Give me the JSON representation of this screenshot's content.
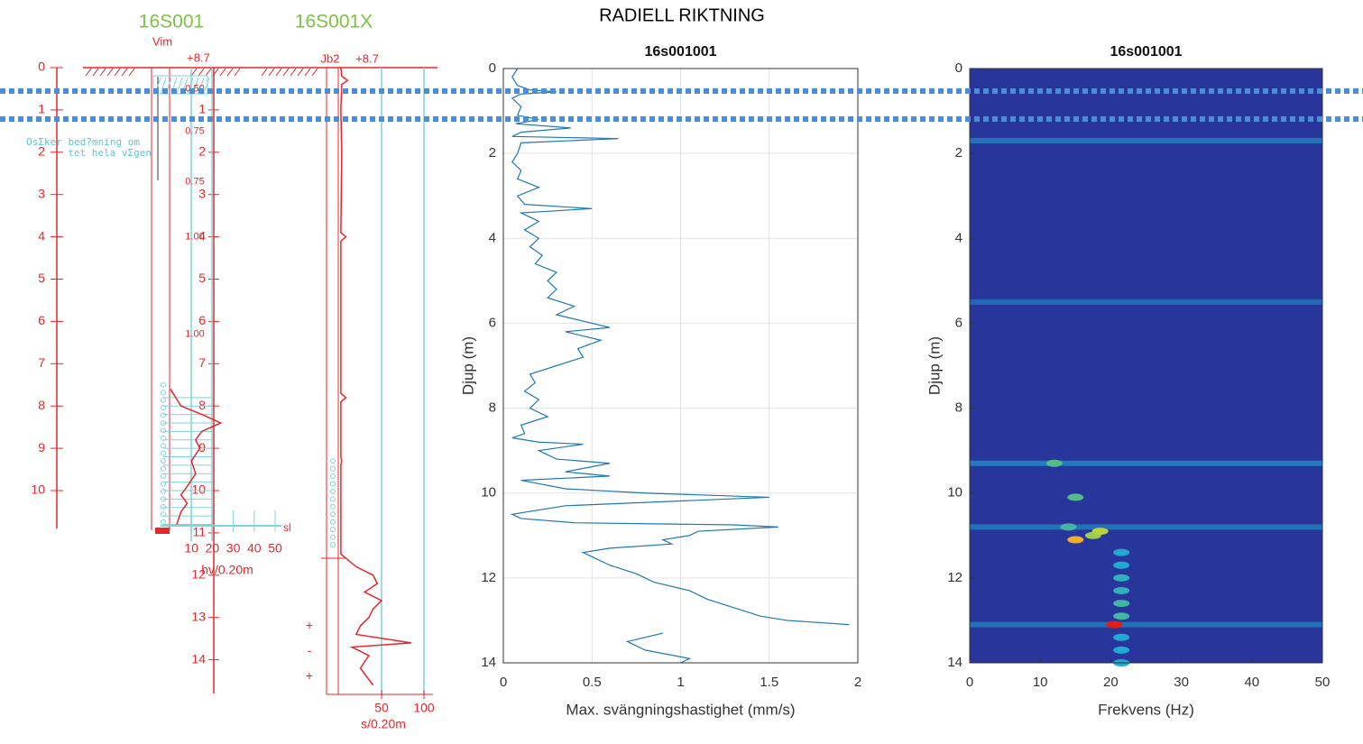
{
  "title": "RADIELL RIKTNING",
  "depth_markers": [
    0.53,
    1.19
  ],
  "chart_data": [
    {
      "type": "sounding",
      "title": "16S001",
      "method": "Vim",
      "level": "+8.7",
      "yticks": [
        0,
        1,
        2,
        3,
        4,
        5,
        6,
        7,
        8,
        9,
        10
      ],
      "yticks_b": [
        1,
        2,
        3,
        4,
        5,
        6,
        7,
        8,
        9,
        10,
        11,
        12,
        13,
        14
      ],
      "weights": {
        "labels": [
          "0.50",
          "0.75",
          "0.75",
          "1.00",
          "1.00"
        ],
        "y": [
          0.5,
          1.5,
          2.7,
          4.0,
          6.3
        ]
      },
      "annotation": [
        "OsΣker bed?mning om",
        "tet hela vΣgen"
      ],
      "xticks": [
        10,
        20,
        30,
        40,
        50
      ],
      "xlabel": "hv/0.20m",
      "end_label": "sl",
      "y": [
        7.6,
        8.0,
        8.2,
        8.4,
        8.6,
        8.8,
        9.0,
        9.3,
        9.6,
        9.9,
        10.1,
        10.3,
        10.5,
        10.8
      ],
      "values": [
        0,
        5,
        15,
        24,
        15,
        12,
        14,
        10,
        12,
        8,
        5,
        8,
        5,
        3
      ]
    },
    {
      "type": "sounding",
      "title": "16S001X",
      "method": "Jb2",
      "level": "+8.7",
      "xticks": [
        50,
        100
      ],
      "xlabel": "s/0.20m",
      "symbols": {
        "labels": [
          "+",
          "-",
          "+"
        ],
        "y": [
          13.2,
          13.8,
          14.4
        ]
      },
      "y": [
        0,
        0.2,
        0.3,
        0.4,
        1.0,
        2.0,
        3.9,
        4.0,
        4.1,
        6.0,
        7.7,
        7.8,
        7.9,
        9.2,
        9.3,
        9.4,
        11.5,
        11.6,
        11.8,
        12.0,
        12.2,
        12.4,
        12.6,
        12.8,
        13.0,
        13.2,
        13.4,
        13.6,
        13.7,
        13.9,
        14.2,
        14.6
      ],
      "values": [
        2,
        3,
        10,
        3,
        2,
        3,
        2,
        8,
        2,
        2,
        2,
        8,
        2,
        2,
        3,
        2,
        2,
        8,
        20,
        40,
        45,
        30,
        50,
        40,
        35,
        25,
        20,
        85,
        15,
        35,
        25,
        40
      ]
    },
    {
      "type": "line",
      "title": "16s001001",
      "xlabel": "Max. svängningshastighet (mm/s)",
      "ylabel": "Djup (m)",
      "xlim": [
        0,
        2
      ],
      "ylim": [
        0,
        14
      ],
      "xticks": [
        0,
        0.5,
        1,
        1.5,
        2
      ],
      "yticks": [
        0,
        2,
        4,
        6,
        8,
        10,
        12,
        14
      ],
      "grid": true,
      "color": "#1f77b4",
      "y": [
        0.0,
        0.2,
        0.4,
        0.5,
        0.55,
        0.6,
        0.7,
        0.9,
        1.1,
        1.2,
        1.3,
        1.4,
        1.5,
        1.6,
        1.65,
        1.75,
        2.0,
        2.2,
        2.4,
        2.6,
        2.8,
        3.0,
        3.2,
        3.3,
        3.4,
        3.6,
        3.8,
        4.0,
        4.2,
        4.4,
        4.6,
        4.8,
        5.0,
        5.2,
        5.4,
        5.6,
        5.8,
        6.0,
        6.1,
        6.2,
        6.4,
        6.6,
        6.8,
        7.0,
        7.2,
        7.4,
        7.6,
        7.8,
        8.0,
        8.2,
        8.4,
        8.6,
        8.7,
        8.8,
        8.85,
        9.0,
        9.2,
        9.3,
        9.5,
        9.6,
        9.7,
        9.9,
        10.0,
        10.1,
        10.3,
        10.5,
        10.6,
        10.7,
        10.75,
        10.8,
        10.9,
        11.0,
        11.1,
        11.2,
        11.3,
        11.4,
        11.5,
        11.7,
        11.9,
        12.1,
        12.3,
        12.5,
        12.7,
        12.9,
        13.0,
        13.1,
        null,
        13.3,
        13.5,
        13.7,
        13.9,
        14.0
      ],
      "x": [
        0.08,
        0.05,
        0.08,
        0.15,
        0.3,
        0.1,
        0.05,
        0.1,
        0.08,
        0.2,
        0.07,
        0.38,
        0.1,
        0.05,
        0.65,
        0.1,
        0.08,
        0.05,
        0.1,
        0.08,
        0.2,
        0.08,
        0.12,
        0.5,
        0.1,
        0.2,
        0.12,
        0.2,
        0.15,
        0.22,
        0.18,
        0.3,
        0.25,
        0.3,
        0.25,
        0.4,
        0.3,
        0.5,
        0.6,
        0.35,
        0.55,
        0.42,
        0.45,
        0.3,
        0.15,
        0.18,
        0.12,
        0.2,
        0.15,
        0.25,
        0.1,
        0.12,
        0.05,
        0.2,
        0.45,
        0.2,
        0.3,
        0.6,
        0.35,
        0.6,
        0.1,
        0.35,
        0.8,
        1.5,
        0.35,
        0.05,
        0.1,
        0.4,
        1.3,
        1.55,
        1.1,
        1.05,
        0.9,
        0.95,
        0.6,
        0.45,
        0.5,
        0.6,
        0.75,
        0.85,
        1.05,
        1.15,
        1.3,
        1.45,
        1.6,
        1.95,
        null,
        0.9,
        0.7,
        0.8,
        1.05,
        1.0
      ]
    },
    {
      "type": "heatmap",
      "title": "16s001001",
      "xlabel": "Frekvens (Hz)",
      "ylabel": "Djup (m)",
      "xlim": [
        0,
        50
      ],
      "ylim": [
        0,
        14
      ],
      "xticks": [
        0,
        10,
        20,
        30,
        40,
        50
      ],
      "yticks": [
        0,
        2,
        4,
        6,
        8,
        10,
        12,
        14
      ],
      "streaks": {
        "y": [
          1.7,
          5.5,
          9.3,
          10.8,
          13.1
        ],
        "values": [
          0.3,
          0.25,
          0.35,
          0.3,
          0.3
        ]
      },
      "spots": {
        "x": [
          12,
          15,
          14,
          17.5,
          18.5,
          15,
          20.5,
          21.5,
          21.5,
          21.5,
          21.5,
          21.5,
          21.5,
          21.5,
          21.5,
          21.5
        ],
        "y": [
          9.3,
          10.1,
          10.8,
          11.0,
          10.9,
          11.1,
          13.1,
          11.4,
          11.7,
          12.0,
          12.3,
          12.6,
          12.9,
          13.4,
          13.7,
          14.0
        ],
        "values": [
          0.5,
          0.5,
          0.45,
          0.65,
          0.7,
          0.85,
          1.0,
          0.35,
          0.35,
          0.4,
          0.4,
          0.45,
          0.45,
          0.35,
          0.35,
          0.35
        ]
      }
    }
  ]
}
